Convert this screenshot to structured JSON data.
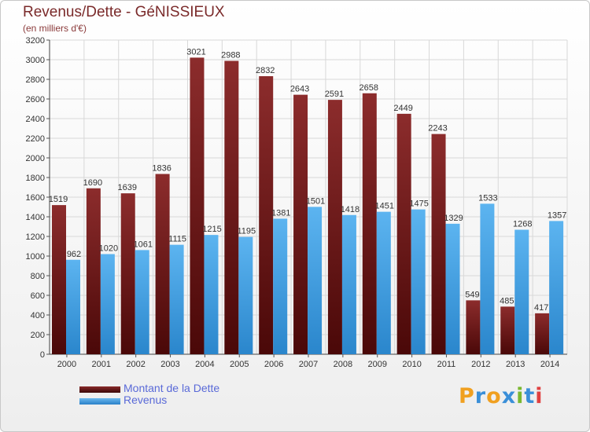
{
  "chart_data": {
    "type": "bar",
    "title": "Revenus/Dette - GéNISSIEUX",
    "subtitle": "(en milliers d'€)",
    "categories": [
      "2000",
      "2001",
      "2002",
      "2003",
      "2004",
      "2005",
      "2006",
      "2007",
      "2008",
      "2009",
      "2010",
      "2011",
      "2012",
      "2013",
      "2014"
    ],
    "series": [
      {
        "name": "Montant de la Dette",
        "color": "#7a1a1a",
        "values": [
          1519,
          1690,
          1639,
          1836,
          3021,
          2988,
          2832,
          2643,
          2591,
          2658,
          2449,
          2243,
          549,
          485,
          417
        ]
      },
      {
        "name": "Revenus",
        "color": "#4aa3e6",
        "values": [
          962,
          1020,
          1061,
          1115,
          1215,
          1195,
          1381,
          1501,
          1418,
          1451,
          1475,
          1329,
          1533,
          1268,
          1357
        ]
      }
    ],
    "ylim": [
      0,
      3200
    ],
    "yticks": [
      0,
      200,
      400,
      600,
      800,
      1000,
      1200,
      1400,
      1600,
      1800,
      2000,
      2200,
      2400,
      2600,
      2800,
      3000,
      3200
    ],
    "grid": true,
    "legend_position": "bottom-left"
  },
  "logo": {
    "text": "Proxiti",
    "colors": [
      "#f0a020",
      "#3a8fd8",
      "#f0a020",
      "#3a8fd8",
      "#7ab830",
      "#3a8fd8",
      "#e04040"
    ]
  }
}
